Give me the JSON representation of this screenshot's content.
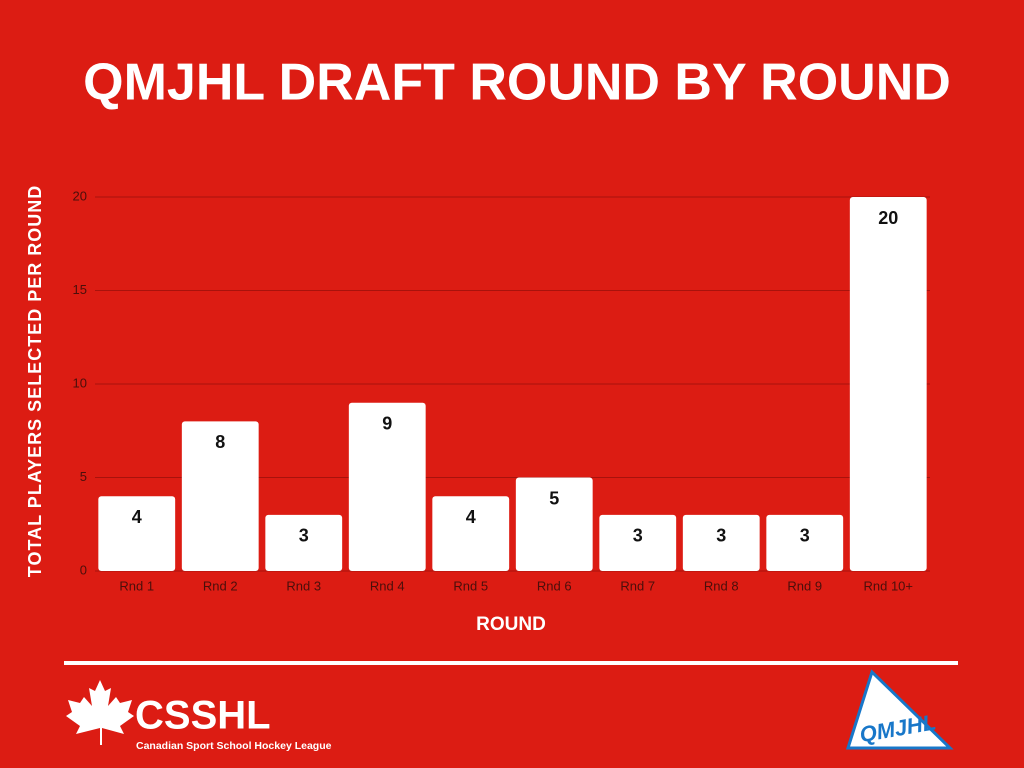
{
  "chart_data": {
    "type": "bar",
    "title": "QMJHL DRAFT ROUND BY ROUND",
    "x_label": "ROUND",
    "y_label": "TOTAL PLAYERS SELECTED PER ROUND",
    "categories": [
      "Rnd 1",
      "Rnd 2",
      "Rnd 3",
      "Rnd 4",
      "Rnd 5",
      "Rnd 6",
      "Rnd 7",
      "Rnd 8",
      "Rnd 9",
      "Rnd 10+"
    ],
    "values": [
      4,
      8,
      3,
      9,
      4,
      5,
      3,
      3,
      3,
      20
    ],
    "color": "#ffffff",
    "ylim": [
      0,
      20
    ],
    "yticks": [
      0,
      5,
      10,
      15,
      20
    ],
    "grid": true
  },
  "footer": {
    "left_logo": "CSSHL",
    "left_tagline": "Canadian Sport School Hockey League",
    "right_logo": "QMJHL"
  }
}
